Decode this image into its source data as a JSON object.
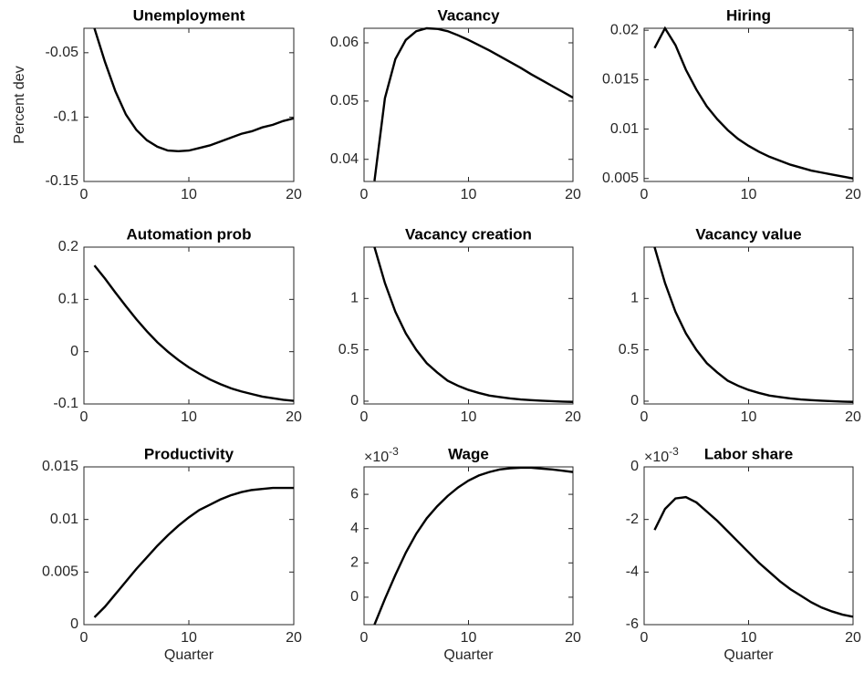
{
  "chart_data": [
    {
      "type": "line",
      "title": "Unemployment",
      "ylabel": "Percent dev",
      "color": "#000000",
      "x": [
        1,
        2,
        3,
        4,
        5,
        6,
        7,
        8,
        9,
        10,
        11,
        12,
        13,
        14,
        15,
        16,
        17,
        18,
        19,
        20
      ],
      "values": [
        -0.031,
        -0.057,
        -0.08,
        -0.098,
        -0.11,
        -0.118,
        -0.123,
        -0.126,
        -0.1265,
        -0.126,
        -0.124,
        -0.122,
        -0.119,
        -0.116,
        -0.113,
        -0.111,
        -0.108,
        -0.106,
        -0.103,
        -0.101
      ],
      "xlim": [
        0,
        20
      ],
      "xticks": [
        0,
        10,
        20
      ],
      "ylim": [
        -0.15,
        -0.031
      ],
      "yticks": [
        -0.15,
        -0.1,
        -0.05
      ]
    },
    {
      "type": "line",
      "title": "Vacancy",
      "color": "#000000",
      "x": [
        1,
        2,
        3,
        4,
        5,
        6,
        7,
        8,
        9,
        10,
        11,
        12,
        13,
        14,
        15,
        16,
        17,
        18,
        19,
        20
      ],
      "values": [
        0.0363,
        0.0505,
        0.0572,
        0.0605,
        0.062,
        0.0625,
        0.0624,
        0.062,
        0.0613,
        0.0605,
        0.0596,
        0.0587,
        0.0577,
        0.0567,
        0.0557,
        0.0546,
        0.0536,
        0.0526,
        0.0516,
        0.0506
      ],
      "xlim": [
        0,
        20
      ],
      "xticks": [
        0,
        10,
        20
      ],
      "ylim": [
        0.0362,
        0.0625
      ],
      "yticks": [
        0.04,
        0.05,
        0.06
      ]
    },
    {
      "type": "line",
      "title": "Hiring",
      "color": "#000000",
      "x": [
        1,
        2,
        3,
        4,
        5,
        6,
        7,
        8,
        9,
        10,
        11,
        12,
        13,
        14,
        15,
        16,
        17,
        18,
        19,
        20
      ],
      "values": [
        0.0182,
        0.0202,
        0.0185,
        0.016,
        0.014,
        0.0123,
        0.011,
        0.0099,
        0.009,
        0.0083,
        0.0077,
        0.0072,
        0.0068,
        0.0064,
        0.0061,
        0.0058,
        0.0056,
        0.0054,
        0.0052,
        0.005
      ],
      "xlim": [
        0,
        20
      ],
      "xticks": [
        0,
        10,
        20
      ],
      "ylim": [
        0.0047,
        0.0202
      ],
      "yticks": [
        0.005,
        0.01,
        0.015,
        0.02
      ]
    },
    {
      "type": "line",
      "title": "Automation prob",
      "color": "#000000",
      "x": [
        1,
        2,
        3,
        4,
        5,
        6,
        7,
        8,
        9,
        10,
        11,
        12,
        13,
        14,
        15,
        16,
        17,
        18,
        19,
        20
      ],
      "values": [
        0.165,
        0.14,
        0.113,
        0.087,
        0.062,
        0.039,
        0.018,
        0.0,
        -0.016,
        -0.03,
        -0.042,
        -0.053,
        -0.062,
        -0.07,
        -0.076,
        -0.081,
        -0.086,
        -0.089,
        -0.092,
        -0.094
      ],
      "xlim": [
        0,
        20
      ],
      "xticks": [
        0,
        10,
        20
      ],
      "ylim": [
        -0.1,
        0.2
      ],
      "yticks": [
        -0.1,
        0,
        0.1,
        0.2
      ]
    },
    {
      "type": "line",
      "title": "Vacancy creation",
      "color": "#000000",
      "x": [
        1,
        2,
        3,
        4,
        5,
        6,
        7,
        8,
        9,
        10,
        11,
        12,
        13,
        14,
        15,
        16,
        17,
        18,
        19,
        20
      ],
      "values": [
        1.5,
        1.15,
        0.87,
        0.66,
        0.5,
        0.37,
        0.28,
        0.2,
        0.15,
        0.11,
        0.08,
        0.055,
        0.04,
        0.027,
        0.017,
        0.01,
        0.005,
        0.0,
        -0.004,
        -0.007
      ],
      "xlim": [
        0,
        20
      ],
      "xticks": [
        0,
        10,
        20
      ],
      "ylim": [
        -0.027,
        1.5
      ],
      "yticks": [
        0,
        0.5,
        1
      ]
    },
    {
      "type": "line",
      "title": "Vacancy value",
      "color": "#000000",
      "x": [
        1,
        2,
        3,
        4,
        5,
        6,
        7,
        8,
        9,
        10,
        11,
        12,
        13,
        14,
        15,
        16,
        17,
        18,
        19,
        20
      ],
      "values": [
        1.5,
        1.15,
        0.87,
        0.66,
        0.5,
        0.37,
        0.28,
        0.2,
        0.15,
        0.11,
        0.08,
        0.055,
        0.04,
        0.027,
        0.017,
        0.01,
        0.005,
        0.0,
        -0.004,
        -0.007
      ],
      "xlim": [
        0,
        20
      ],
      "xticks": [
        0,
        10,
        20
      ],
      "ylim": [
        -0.027,
        1.5
      ],
      "yticks": [
        0,
        0.5,
        1
      ]
    },
    {
      "type": "line",
      "title": "Productivity",
      "xlabel": "Quarter",
      "color": "#000000",
      "x": [
        1,
        2,
        3,
        4,
        5,
        6,
        7,
        8,
        9,
        10,
        11,
        12,
        13,
        14,
        15,
        16,
        17,
        18,
        19,
        20
      ],
      "values": [
        0.0007,
        0.0017,
        0.0029,
        0.0041,
        0.0053,
        0.0064,
        0.0075,
        0.0085,
        0.0094,
        0.0102,
        0.0109,
        0.0114,
        0.0119,
        0.0123,
        0.0126,
        0.0128,
        0.0129,
        0.013,
        0.013,
        0.013
      ],
      "xlim": [
        0,
        20
      ],
      "xticks": [
        0,
        10,
        20
      ],
      "ylim": [
        0,
        0.015
      ],
      "yticks": [
        0,
        0.005,
        0.01,
        0.015
      ]
    },
    {
      "type": "line",
      "title": "Wage",
      "xlabel": "Quarter",
      "y_multiplier": {
        "base": "×10",
        "power": "-3"
      },
      "color": "#000000",
      "x": [
        1,
        2,
        3,
        4,
        5,
        6,
        7,
        8,
        9,
        10,
        11,
        12,
        13,
        14,
        15,
        16,
        17,
        18,
        19,
        20
      ],
      "values": [
        -1.6,
        -0.1,
        1.3,
        2.6,
        3.7,
        4.6,
        5.3,
        5.9,
        6.4,
        6.8,
        7.1,
        7.3,
        7.45,
        7.52,
        7.55,
        7.55,
        7.5,
        7.45,
        7.38,
        7.3
      ],
      "xlim": [
        0,
        20
      ],
      "xticks": [
        0,
        10,
        20
      ],
      "ylim": [
        -1.6,
        7.6
      ],
      "yticks": [
        0,
        2,
        4,
        6
      ]
    },
    {
      "type": "line",
      "title": "Labor share",
      "xlabel": "Quarter",
      "y_multiplier": {
        "base": "×10",
        "power": "-3"
      },
      "color": "#000000",
      "x": [
        1,
        2,
        3,
        4,
        5,
        6,
        7,
        8,
        9,
        10,
        11,
        12,
        13,
        14,
        15,
        16,
        17,
        18,
        19,
        20
      ],
      "values": [
        -2.4,
        -1.6,
        -1.2,
        -1.15,
        -1.35,
        -1.7,
        -2.05,
        -2.45,
        -2.85,
        -3.25,
        -3.65,
        -4.0,
        -4.35,
        -4.65,
        -4.9,
        -5.15,
        -5.35,
        -5.5,
        -5.62,
        -5.7
      ],
      "xlim": [
        0,
        20
      ],
      "xticks": [
        0,
        10,
        20
      ],
      "ylim": [
        -6,
        0
      ],
      "yticks": [
        -6,
        -4,
        -2,
        0
      ]
    }
  ]
}
